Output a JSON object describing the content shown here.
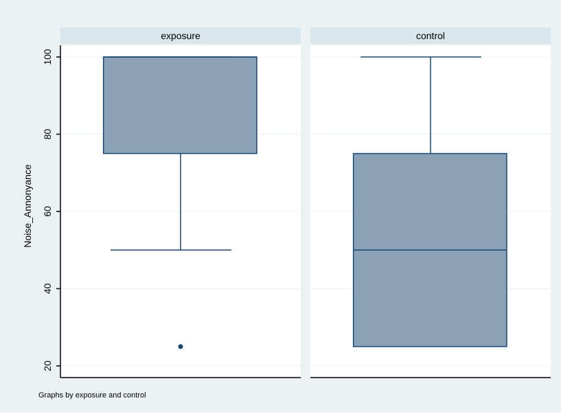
{
  "chart_data": {
    "type": "boxplot",
    "ylabel": "Noise_Annonyance",
    "ylim": [
      20,
      100
    ],
    "yticks": [
      20,
      40,
      60,
      80,
      100
    ],
    "grid": true,
    "note": "Graphs by exposure and control",
    "panels": [
      {
        "title": "exposure",
        "box": {
          "lower_whisker": 50,
          "q1": 75,
          "median": 100,
          "q3": 100,
          "upper_whisker": 100
        },
        "outliers": [
          25
        ]
      },
      {
        "title": "control",
        "box": {
          "lower_whisker": 25,
          "q1": 25,
          "median": 50,
          "q3": 75,
          "upper_whisker": 100
        },
        "outliers": []
      }
    ]
  },
  "colors": {
    "background": "#eaf2f3",
    "panel_bg": "#ffffff",
    "strip_bg": "#d9e6eb",
    "box_fill": "#8ba2b6",
    "box_stroke": "#1a476f",
    "grid": "#eaf2f3",
    "axis": "#000000"
  }
}
